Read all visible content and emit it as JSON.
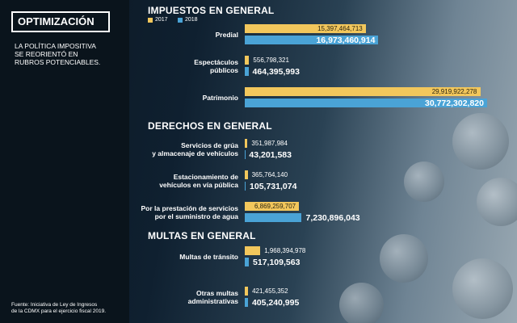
{
  "sidebar": {
    "title": "OPTIMIZACIÓN",
    "text": "LA POLÍTICA IMPOSITIVA\nSE REORIENTÓ EN\nRUBROS POTENCIABLES.",
    "source": "Fuente: Iniciativa de Ley de Ingresos\nde la CDMX para el ejercicio fiscal 2019."
  },
  "chart_data": [
    {
      "type": "bar",
      "orientation": "horizontal",
      "title": "IMPUESTOS EN GENERAL",
      "legend": true,
      "categories": [
        "Predial",
        "Espectáculos\npúblicos",
        "Patrimonio"
      ],
      "series": [
        {
          "name": "2017",
          "color": "#f2c75c",
          "values": [
            15397464713,
            556798321,
            29919922278
          ],
          "value_labels": [
            "15,397,464,713",
            "556,798,321",
            "29,919,922,278"
          ]
        },
        {
          "name": "2018",
          "color": "#4aa3d6",
          "values": [
            16973460914,
            464395993,
            30772302820
          ],
          "value_labels": [
            "16,973,460,914",
            "464,395,993",
            "30,772,302,820"
          ]
        }
      ]
    },
    {
      "type": "bar",
      "orientation": "horizontal",
      "title": "DERECHOS EN GENERAL",
      "legend": false,
      "categories": [
        "Servicios de grúa\ny almacenaje de vehículos",
        "Estacionamiento de\nvehículos en vía pública",
        "Por la prestación de servicios\npor el suministro de agua"
      ],
      "series": [
        {
          "color": "#f2c75c",
          "values": [
            351987984,
            365764140,
            6869259707
          ],
          "value_labels": [
            "351,987,984",
            "365,764,140",
            "6,869,259,707"
          ]
        },
        {
          "color": "#4aa3d6",
          "values": [
            43201583,
            105731074,
            7230896043
          ],
          "value_labels": [
            "43,201,583",
            "105,731,074",
            "7,230,896,043"
          ]
        }
      ]
    },
    {
      "type": "bar",
      "orientation": "horizontal",
      "title": "MULTAS EN GENERAL",
      "legend": false,
      "categories": [
        "Multas de tránsito",
        "Otras multas\nadministrativas"
      ],
      "series": [
        {
          "color": "#f2c75c",
          "values": [
            1968394978,
            421455352
          ],
          "value_labels": [
            "1,968,394,978",
            "421,455,352"
          ]
        },
        {
          "color": "#4aa3d6",
          "values": [
            517109563,
            405240995
          ],
          "value_labels": [
            "517,109,563",
            "405,240,995"
          ]
        }
      ]
    }
  ]
}
